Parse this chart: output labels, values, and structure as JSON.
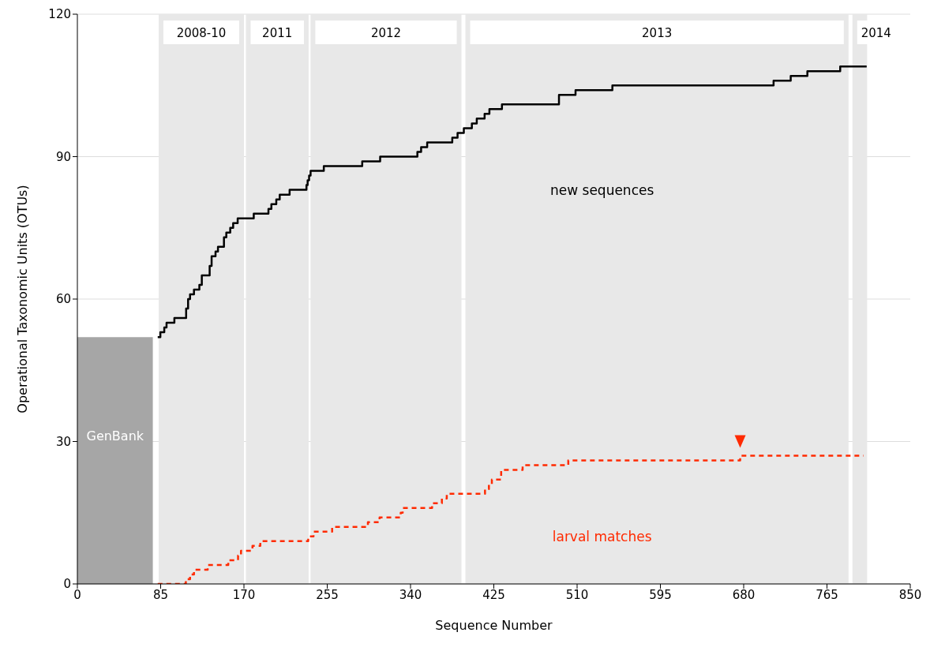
{
  "chart_data": {
    "type": "step",
    "xlabel": "Sequence Number",
    "ylabel": "Operational Taxonomic Units (OTUs)",
    "xlim": [
      0,
      850
    ],
    "xticks": [
      0,
      85,
      170,
      255,
      340,
      425,
      510,
      595,
      680,
      765,
      850
    ],
    "ylim": [
      0,
      120
    ],
    "yticks": [
      0,
      30,
      60,
      90,
      120
    ],
    "grid": "y",
    "legend": false,
    "series": [
      {
        "name": "GenBank",
        "type": "area",
        "color": "#a6a6a6",
        "x": [
          0,
          77
        ],
        "values": [
          52,
          52
        ]
      },
      {
        "name": "new sequences",
        "color": "#000000",
        "line_style": "solid",
        "x": [
          82,
          84.7,
          88.7,
          91,
          99,
          111,
          113,
          115,
          119,
          124.5,
          127,
          135,
          137,
          141,
          143.5,
          149.6,
          152,
          156,
          159,
          163.6,
          180,
          195,
          198,
          203,
          206.5,
          216.6,
          233.8,
          235,
          236.5,
          238,
          251.5,
          290.7,
          309,
          347,
          350.8,
          357,
          382.6,
          388,
          394.4,
          402.6,
          407.6,
          415.6,
          420.5,
          433.3,
          491.5,
          508.4,
          546,
          710.5,
          728,
          745,
          778.5,
          805.5
        ],
        "values": [
          52,
          53,
          54,
          55,
          56,
          58,
          60,
          61,
          62,
          63,
          65,
          67,
          69,
          70,
          71,
          73,
          74,
          75,
          76,
          77,
          78,
          79,
          80,
          81,
          82,
          83,
          84,
          85,
          86,
          87,
          88,
          89,
          90,
          91,
          92,
          93,
          94,
          95,
          96,
          97,
          98,
          99,
          100,
          101,
          103,
          104,
          105,
          106,
          107,
          108,
          109,
          109
        ]
      },
      {
        "name": "larval matches",
        "color": "#ff2a00",
        "line_style": "dashed",
        "x": [
          82,
          110.7,
          115,
          119,
          133,
          154,
          164,
          167,
          178.7,
          186.7,
          235.6,
          241,
          260,
          296.5,
          308.4,
          330,
          332,
          362,
          372,
          377,
          416,
          420,
          423,
          432.5,
          454.4,
          501,
          676.4,
          802.3
        ],
        "values": [
          0,
          1,
          2,
          3,
          4,
          5,
          6,
          7,
          8,
          9,
          10,
          11,
          12,
          13,
          14,
          15,
          16,
          17,
          18,
          19,
          20,
          21,
          22,
          24,
          25,
          26,
          27,
          27
        ]
      }
    ],
    "bands": [
      {
        "axis": "x",
        "from": 83,
        "to": 170,
        "label": "2008-10",
        "color": "#e8e8e8"
      },
      {
        "axis": "x",
        "from": 172,
        "to": 236,
        "label": "2011",
        "color": "#e8e8e8"
      },
      {
        "axis": "x",
        "from": 238,
        "to": 392,
        "label": "2012",
        "color": "#e8e8e8"
      },
      {
        "axis": "x",
        "from": 396,
        "to": 787,
        "label": "2013",
        "color": "#e8e8e8"
      },
      {
        "axis": "x",
        "from": 791,
        "to": 806,
        "label": "2014",
        "color": "#e8e8e8"
      }
    ]
  }
}
